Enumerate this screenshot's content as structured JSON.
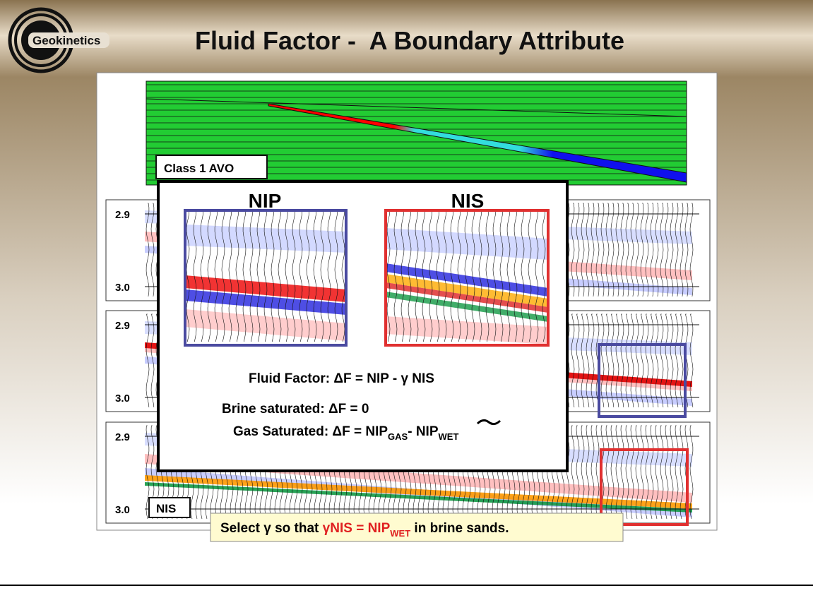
{
  "header": {
    "logo": "Geokinetics",
    "title": "Fluid Factor -  A Boundary Attribute"
  },
  "model": {
    "label": "Class 1 AVO"
  },
  "panels": [
    {
      "top_tick": "2.9",
      "bottom_tick": "3.0"
    },
    {
      "top_tick": "2.9",
      "bottom_tick": "3.0"
    },
    {
      "top_tick": "2.9",
      "bottom_tick": "3.0",
      "label": "NIS"
    }
  ],
  "inset": {
    "nip_title": "NIP",
    "nis_title": "NIS",
    "fluid_factor": "Fluid Factor: ΔF = NIP - γ NIS",
    "brine": "Brine saturated: ΔF = 0",
    "gas": {
      "lead": "Gas Saturated: ΔF = NIP",
      "sub1": "GAS",
      "mid": "- ",
      "term": "NIP",
      "sub2": "WET"
    }
  },
  "caption": {
    "pre": "Select γ so that ",
    "highlight": "γNIS = NIP",
    "sub": "WET",
    "post": " in brine sands."
  }
}
